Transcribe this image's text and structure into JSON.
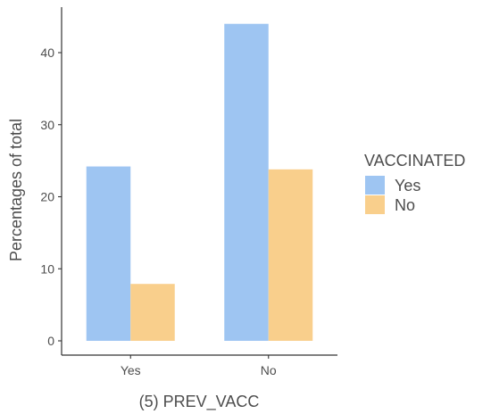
{
  "chart_data": {
    "type": "bar",
    "xlabel": "(5) PREV_VACC",
    "ylabel": "Percentages of total",
    "categories": [
      "Yes",
      "No"
    ],
    "series": [
      {
        "name": "Yes",
        "values": [
          24.2,
          44.0
        ],
        "color": "#9ec5f2"
      },
      {
        "name": "No",
        "values": [
          7.9,
          23.8
        ],
        "color": "#f9cf8c"
      }
    ],
    "ylim": [
      0,
      46.3
    ],
    "yticks": [
      0,
      10,
      20,
      30,
      40
    ],
    "legend": {
      "title": "VACCINATED",
      "position": "right"
    },
    "grid": false
  }
}
